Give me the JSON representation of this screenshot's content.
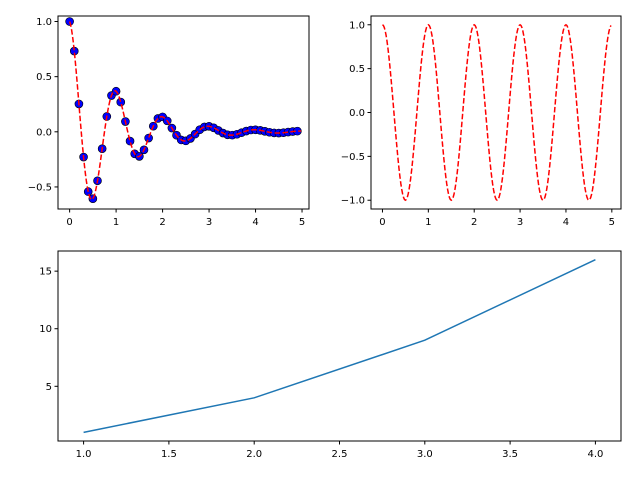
{
  "chart_data": [
    {
      "type": "scatter",
      "title": "",
      "xlabel": "",
      "ylabel": "",
      "xlim": [
        -0.25,
        5.15
      ],
      "ylim": [
        -0.7,
        1.05
      ],
      "xticks": [
        "0",
        "1",
        "2",
        "3",
        "4",
        "5"
      ],
      "yticks": [
        "−0.5",
        "0.0",
        "0.5",
        "1.0"
      ],
      "xtick_values": [
        0,
        1,
        2,
        3,
        4,
        5
      ],
      "ytick_values": [
        -0.5,
        0.0,
        0.5,
        1.0
      ],
      "grid": false,
      "function": "exp(-t) * cos(2*pi*t)",
      "x": [
        0.0,
        0.1,
        0.2,
        0.3,
        0.4,
        0.5,
        0.6,
        0.7,
        0.8,
        0.9,
        1.0,
        1.1,
        1.2,
        1.3,
        1.4,
        1.5,
        1.6,
        1.7,
        1.8,
        1.9,
        2.0,
        2.1,
        2.2,
        2.3,
        2.4,
        2.5,
        2.6,
        2.7,
        2.8,
        2.9,
        3.0,
        3.1,
        3.2,
        3.3,
        3.4,
        3.5,
        3.6,
        3.7,
        3.8,
        3.9,
        4.0,
        4.1,
        4.2,
        4.3,
        4.4,
        4.5,
        4.6,
        4.7,
        4.8,
        4.9
      ],
      "series": [
        {
          "style": "markers",
          "color": "#0000ff",
          "edgecolor": "#000000"
        },
        {
          "style": "dashed-line",
          "color": "#ff0000"
        }
      ]
    },
    {
      "type": "line",
      "title": "",
      "xlabel": "",
      "ylabel": "",
      "xlim": [
        -0.25,
        5.2
      ],
      "ylim": [
        -1.1,
        1.1
      ],
      "xticks": [
        "0",
        "1",
        "2",
        "3",
        "4",
        "5"
      ],
      "yticks": [
        "−1.0",
        "−0.5",
        "0.0",
        "0.5",
        "1.0"
      ],
      "xtick_values": [
        0,
        1,
        2,
        3,
        4,
        5
      ],
      "ytick_values": [
        -1.0,
        -0.5,
        0.0,
        0.5,
        1.0
      ],
      "grid": false,
      "function": "cos(2*pi*t)",
      "x_range": [
        0.0,
        4.98
      ],
      "series": [
        {
          "style": "dashed-line",
          "color": "#ff0000"
        }
      ]
    },
    {
      "type": "line",
      "title": "",
      "xlabel": "",
      "ylabel": "",
      "xlim": [
        0.85,
        4.15
      ],
      "ylim": [
        0.25,
        16.75
      ],
      "xticks": [
        "1.0",
        "1.5",
        "2.0",
        "2.5",
        "3.0",
        "3.5",
        "4.0"
      ],
      "yticks": [
        "5",
        "10",
        "15"
      ],
      "xtick_values": [
        1.0,
        1.5,
        2.0,
        2.5,
        3.0,
        3.5,
        4.0
      ],
      "ytick_values": [
        5,
        10,
        15
      ],
      "grid": false,
      "x": [
        1,
        2,
        3,
        4
      ],
      "series": [
        {
          "style": "solid-line",
          "color": "#1f77b4",
          "values": [
            1,
            4,
            9,
            16
          ]
        }
      ]
    }
  ]
}
